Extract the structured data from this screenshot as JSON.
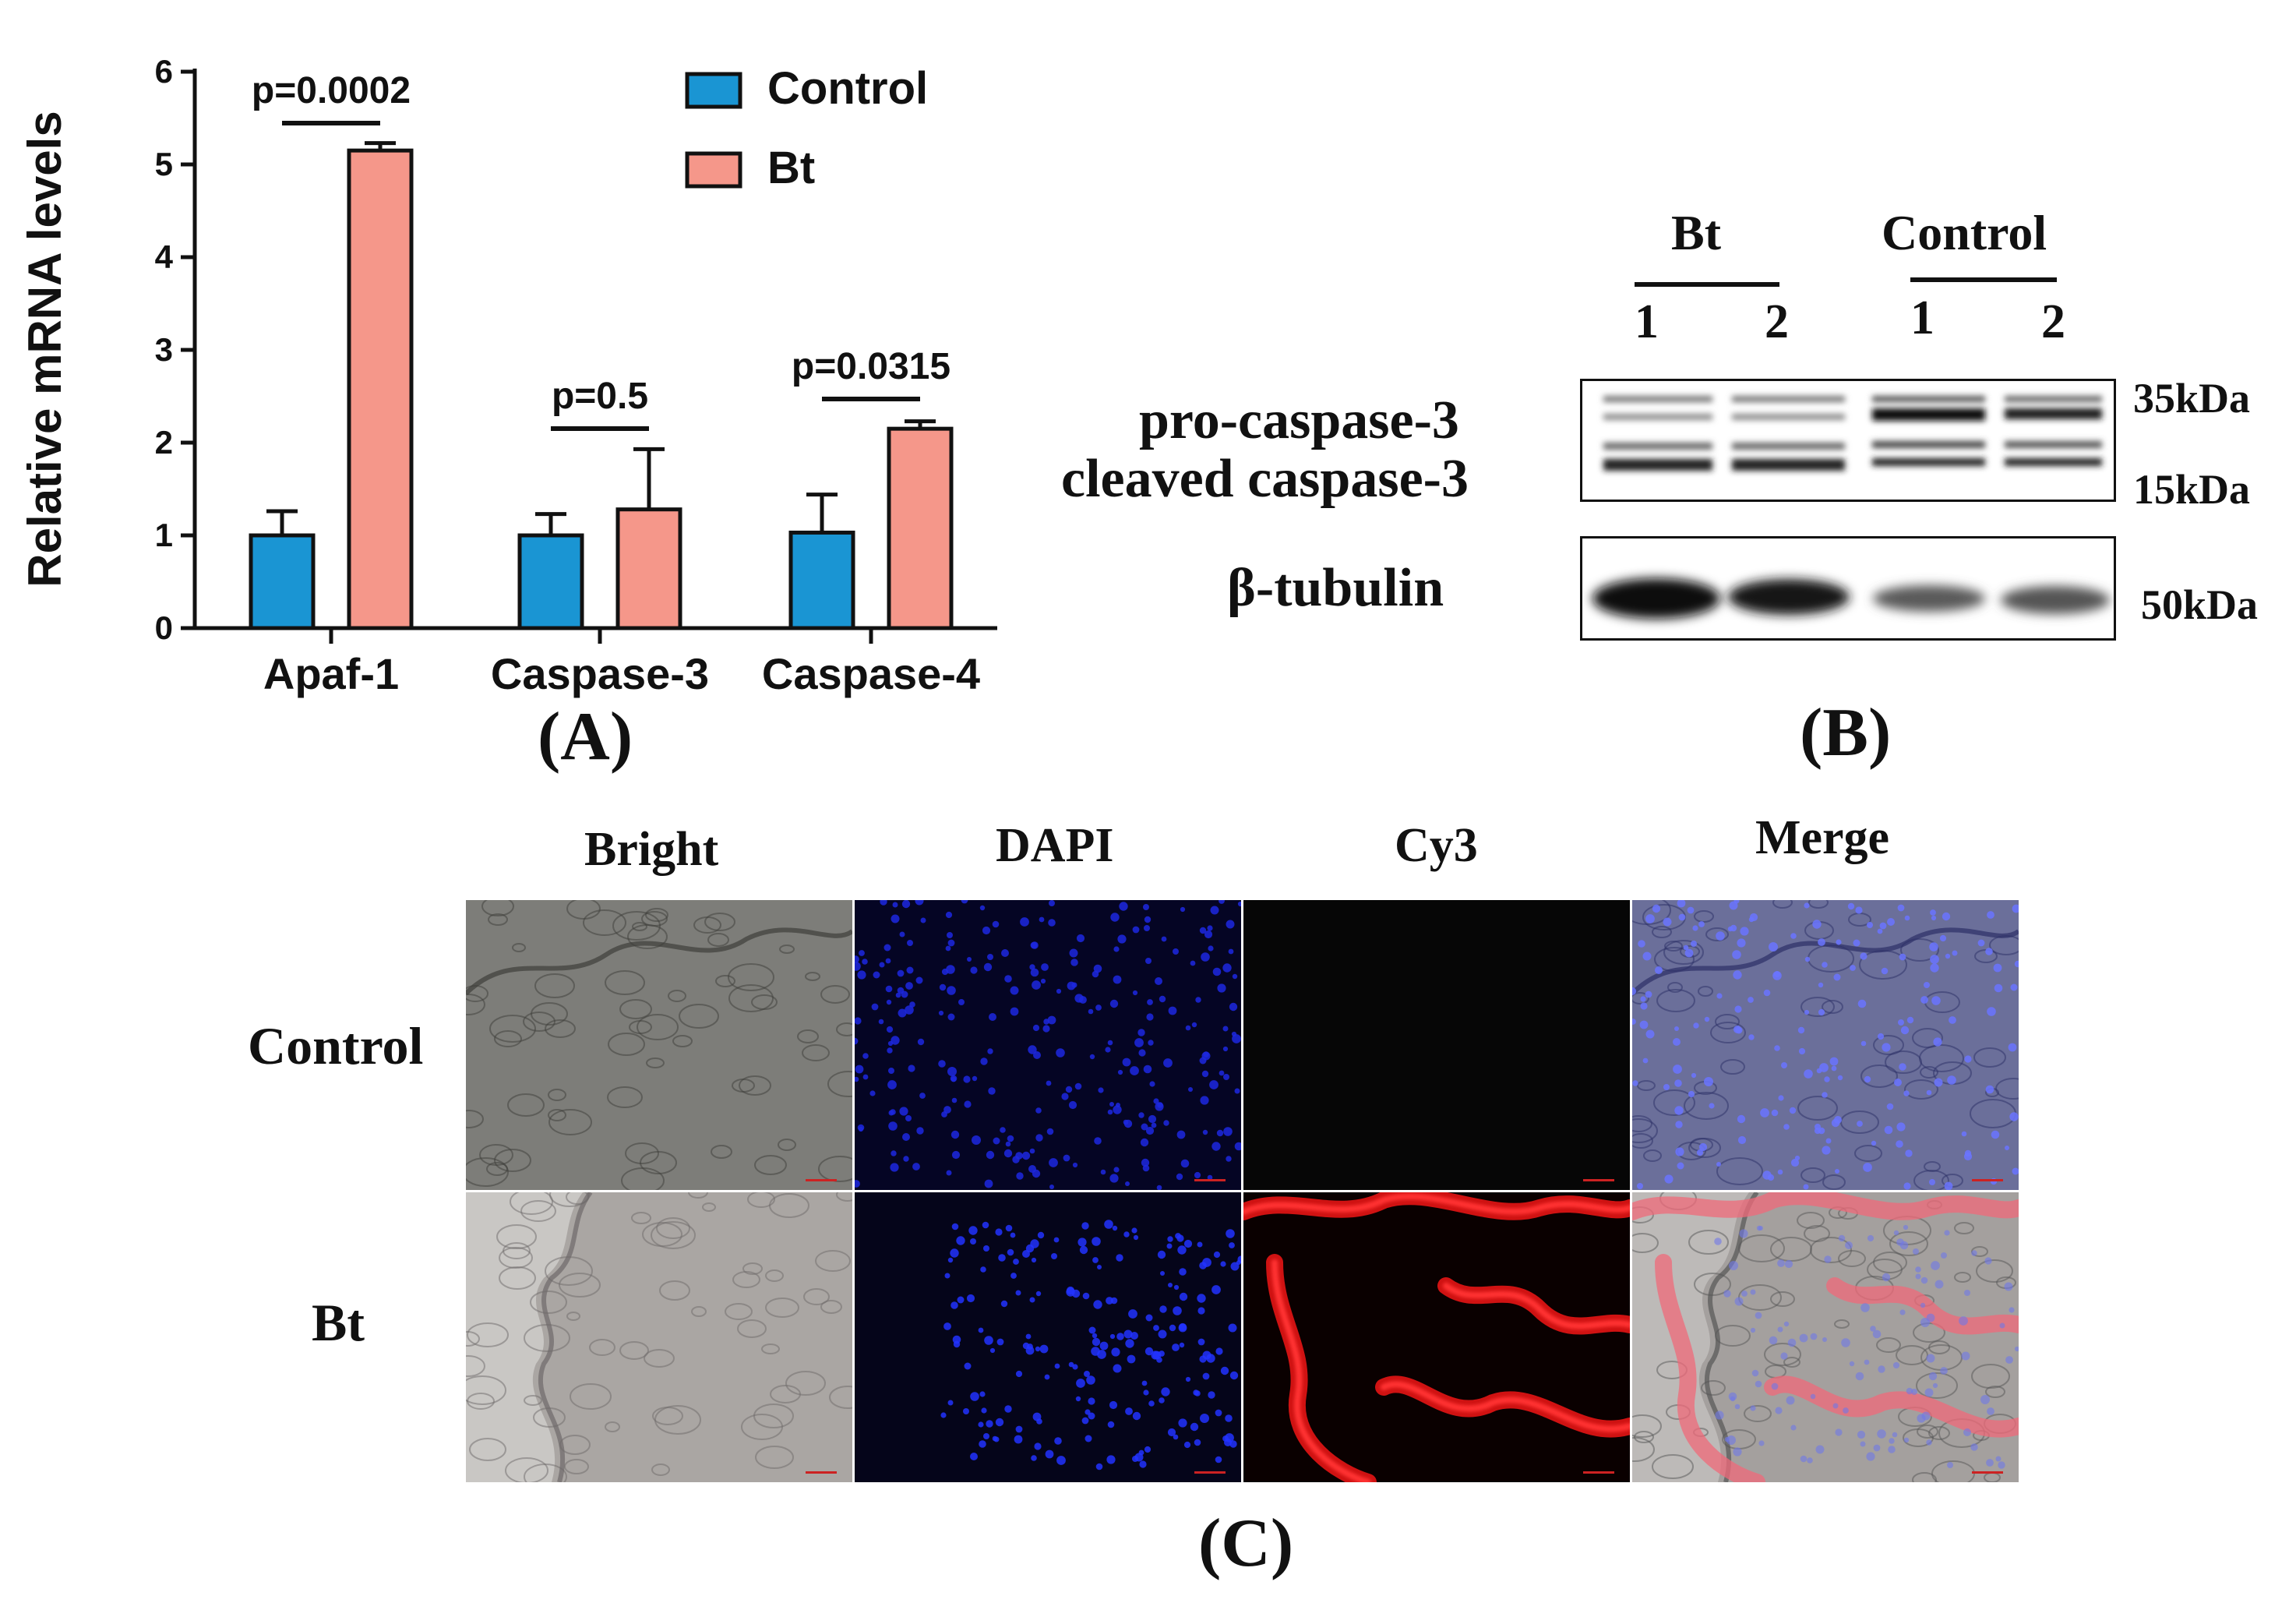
{
  "panel_a": {
    "label": "(A)",
    "legend": [
      {
        "name": "Control",
        "color": "#1a95d3"
      },
      {
        "name": "Bt",
        "color": "#f5978a"
      }
    ],
    "p_values": [
      "p=0.0002",
      "p=0.5",
      "p=0.0315"
    ]
  },
  "chart_data": {
    "type": "bar",
    "title": "",
    "xlabel": "",
    "ylabel": "Relative mRNA levels",
    "ylim": [
      0,
      6
    ],
    "yticks": [
      "0",
      "1",
      "2",
      "3",
      "4",
      "5",
      "6"
    ],
    "categories": [
      "Apaf-1",
      "Caspase-3",
      "Caspase-4"
    ],
    "series": [
      {
        "name": "Control",
        "color": "#1a95d3",
        "values": [
          1.0,
          1.0,
          1.03
        ],
        "errors": [
          0.26,
          0.23,
          0.41
        ]
      },
      {
        "name": "Bt",
        "color": "#f5978a",
        "values": [
          5.15,
          1.28,
          2.15
        ],
        "errors": [
          0.08,
          0.65,
          0.08
        ]
      }
    ],
    "annotations": [
      "p=0.0002",
      "p=0.5",
      "p=0.0315"
    ],
    "legend_position": "top-right",
    "grid": false
  },
  "panel_b": {
    "label": "(B)",
    "groups": [
      "Bt",
      "Control"
    ],
    "lanes": [
      "1",
      "2",
      "1",
      "2"
    ],
    "bands": [
      "pro-caspase-3",
      "cleaved caspase-3",
      "β-tubulin"
    ],
    "markers": [
      "35kDa",
      "15kDa",
      "50kDa"
    ]
  },
  "panel_c": {
    "label": "(C)",
    "columns": [
      "Bright",
      "DAPI",
      "Cy3",
      "Merge"
    ],
    "rows": [
      "Control",
      "Bt"
    ]
  }
}
